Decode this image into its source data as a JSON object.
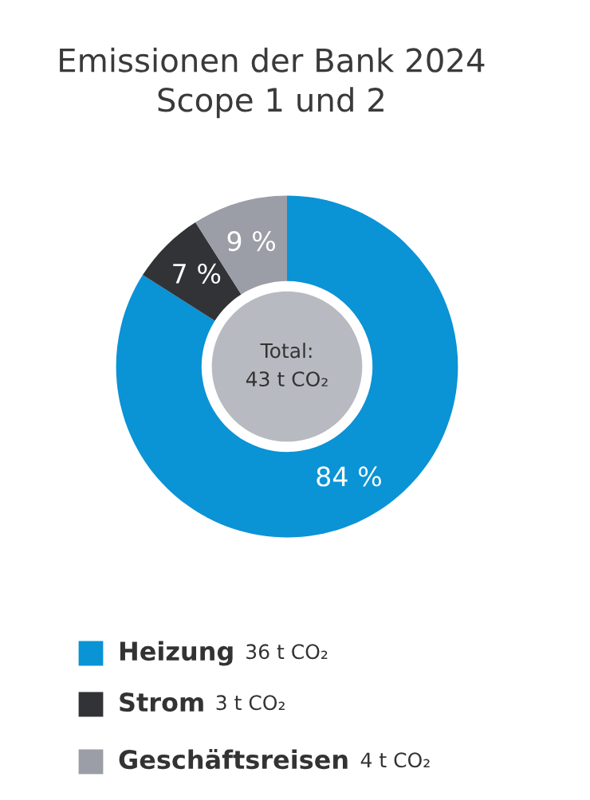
{
  "chart_data": {
    "type": "donut",
    "title": "Emissionen der Bank 2024\nScope 1 und 2",
    "categories": [
      "Heizung",
      "Strom",
      "Geschäftsreisen"
    ],
    "values": [
      84,
      7,
      9
    ],
    "colors": [
      "#0a93d5",
      "#323336",
      "#9b9ea6"
    ],
    "value_labels": [
      "84 %",
      "7 %",
      "9 %"
    ],
    "annotations": [
      "Total:\n43 t CO₂",
      "36 t CO₂",
      "3 t CO₂",
      "4 t CO₂"
    ],
    "legend": "bottom"
  }
}
